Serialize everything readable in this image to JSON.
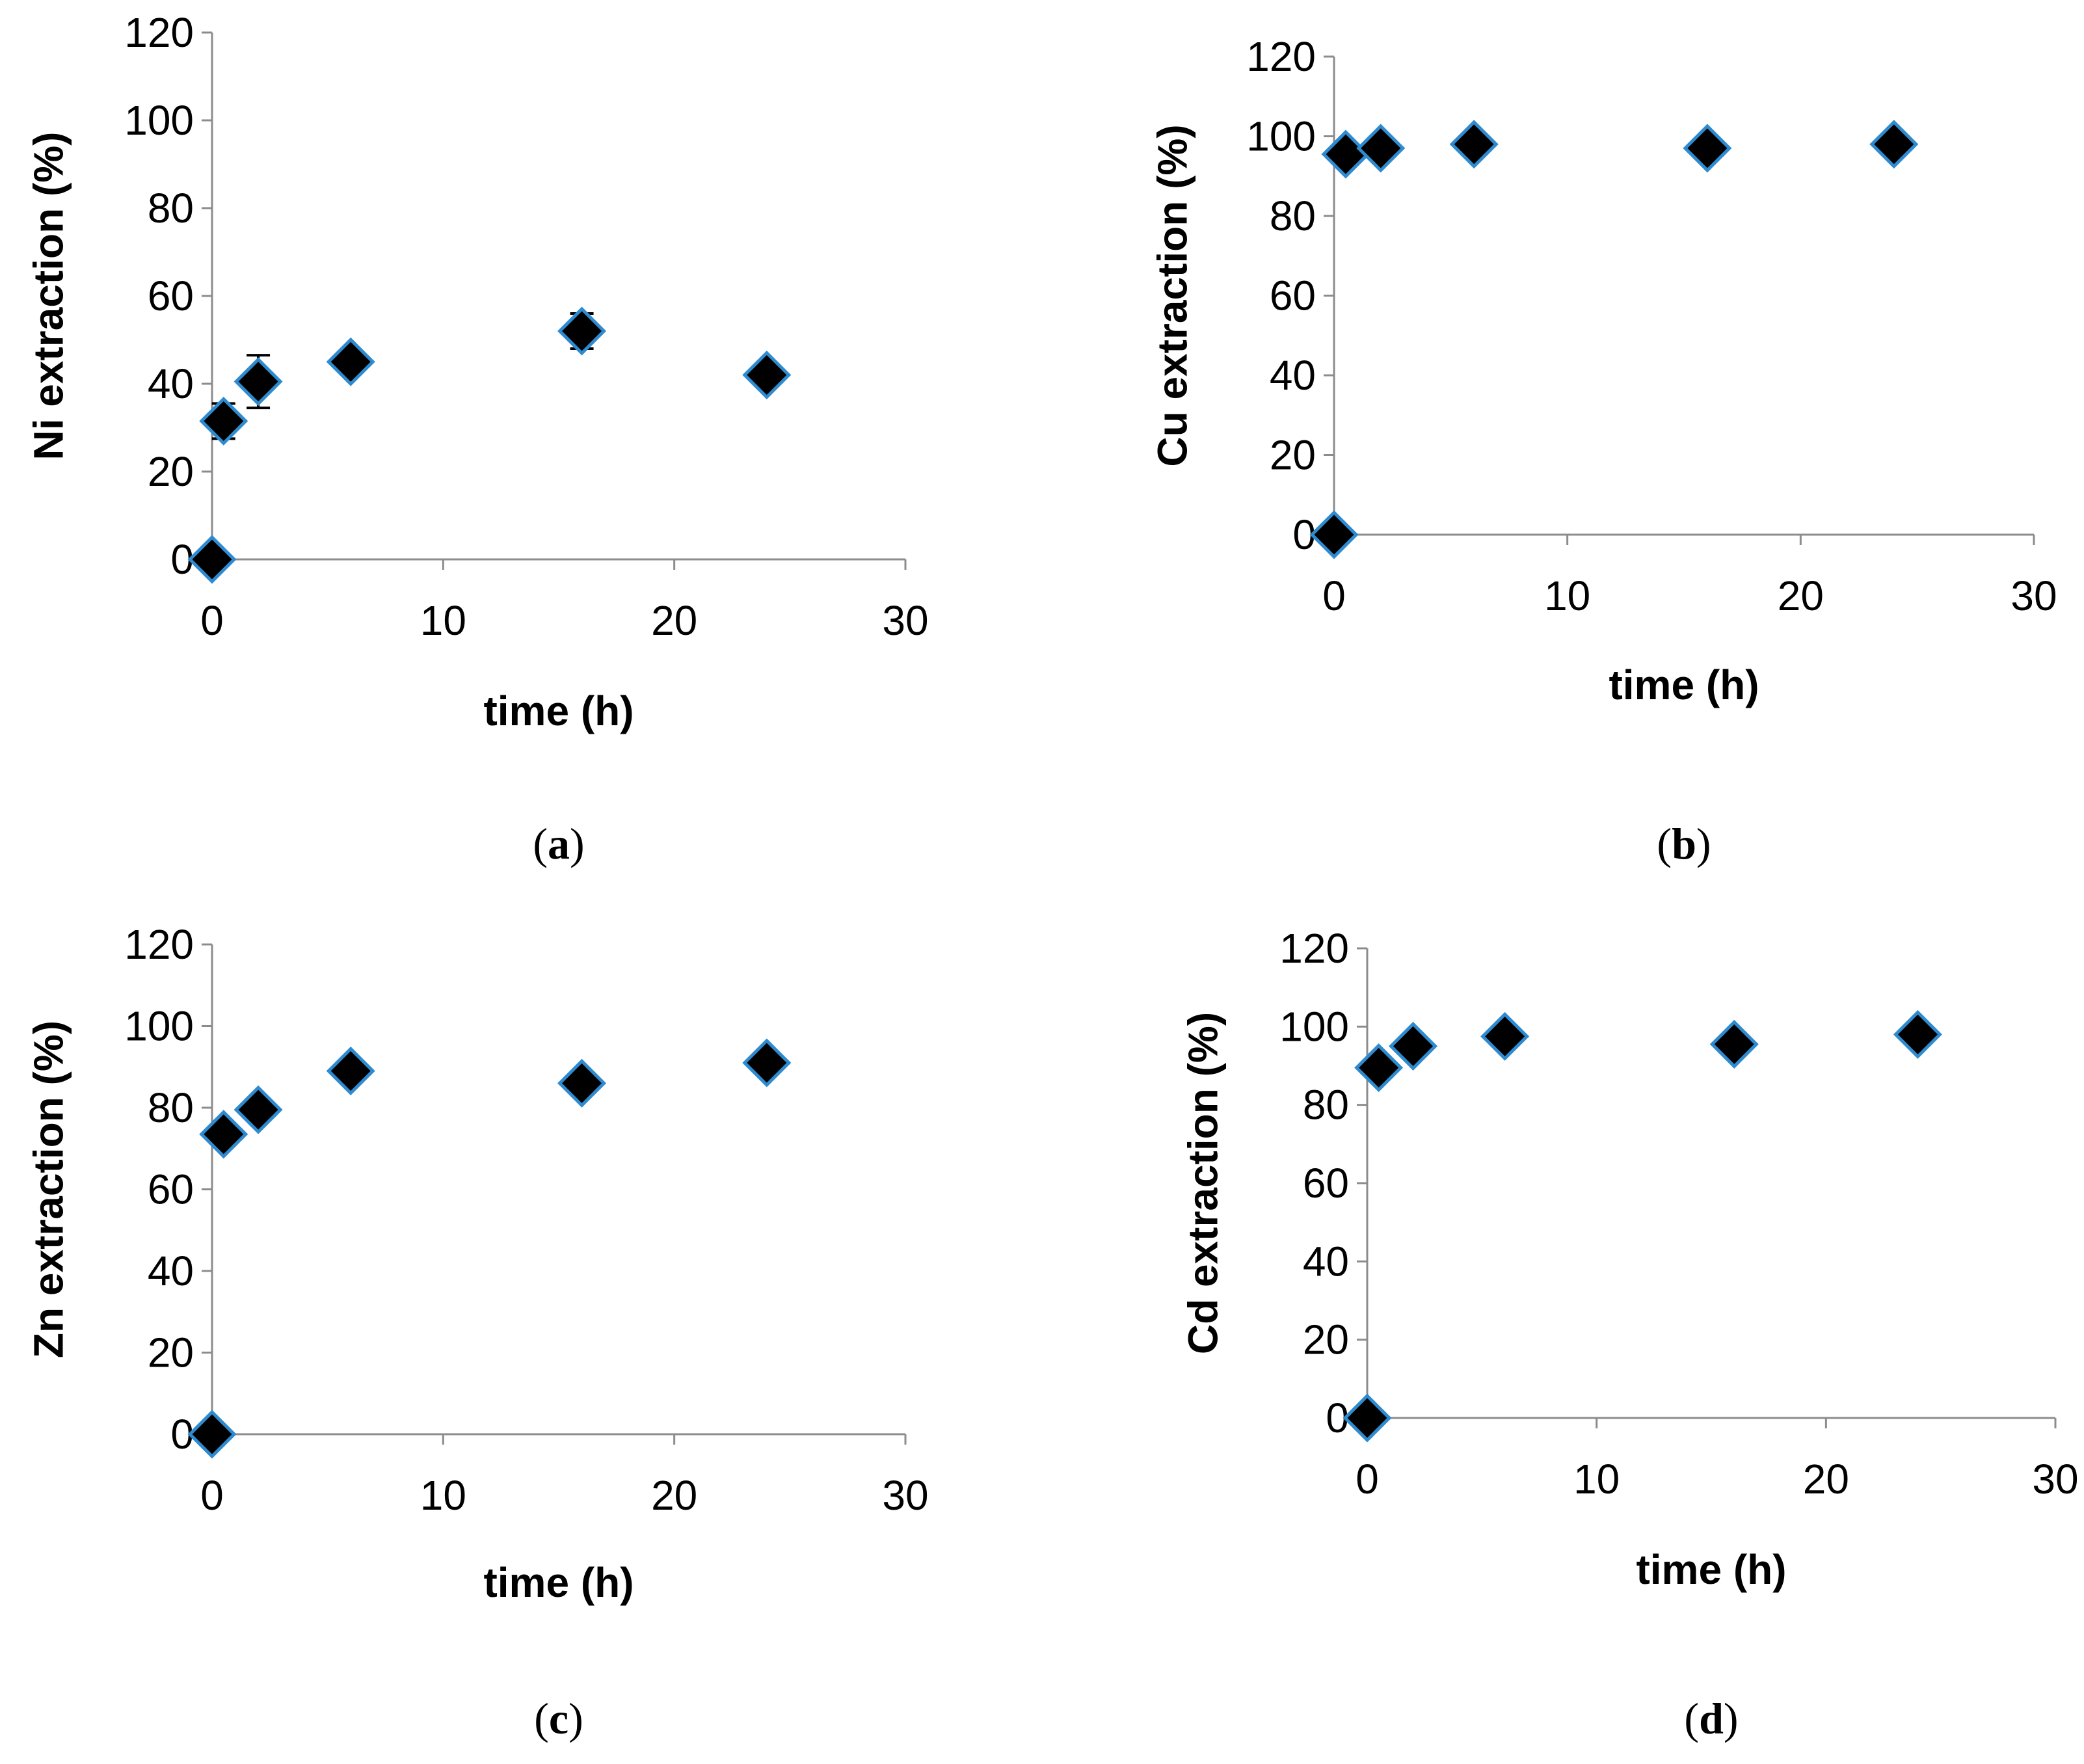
{
  "figure_title": "",
  "chart_data": [
    {
      "type": "scatter",
      "panel": "a",
      "xlabel": "time (h)",
      "ylabel": "Ni extraction (%)",
      "xlim": [
        0,
        30
      ],
      "ylim": [
        0,
        120
      ],
      "xticks": [
        0,
        10,
        20,
        30
      ],
      "yticks": [
        0,
        20,
        40,
        60,
        80,
        100,
        120
      ],
      "marker_fill": "#000000",
      "marker_edge": "#2e8bd0",
      "series": [
        {
          "name": "Ni",
          "points": [
            {
              "x": 0,
              "y": 0
            },
            {
              "x": 0.5,
              "y": 31.5,
              "err": 4
            },
            {
              "x": 2,
              "y": 40.5,
              "err": 6
            },
            {
              "x": 6,
              "y": 45
            },
            {
              "x": 16,
              "y": 52,
              "err": 4
            },
            {
              "x": 24,
              "y": 42
            }
          ]
        }
      ]
    },
    {
      "type": "scatter",
      "panel": "b",
      "xlabel": "time (h)",
      "ylabel": "Cu extraction (%)",
      "xlim": [
        0,
        30
      ],
      "ylim": [
        0,
        120
      ],
      "xticks": [
        0,
        10,
        20,
        30
      ],
      "yticks": [
        0,
        20,
        40,
        60,
        80,
        100,
        120
      ],
      "marker_fill": "#000000",
      "marker_edge": "#2e8bd0",
      "series": [
        {
          "name": "Cu",
          "points": [
            {
              "x": 0,
              "y": 0
            },
            {
              "x": 0.5,
              "y": 95.5
            },
            {
              "x": 2,
              "y": 97
            },
            {
              "x": 6,
              "y": 98
            },
            {
              "x": 16,
              "y": 97
            },
            {
              "x": 24,
              "y": 98
            }
          ]
        }
      ]
    },
    {
      "type": "scatter",
      "panel": "c",
      "xlabel": "time (h)",
      "ylabel": "Zn extraction (%)",
      "xlim": [
        0,
        30
      ],
      "ylim": [
        0,
        120
      ],
      "xticks": [
        0,
        10,
        20,
        30
      ],
      "yticks": [
        0,
        20,
        40,
        60,
        80,
        100,
        120
      ],
      "marker_fill": "#000000",
      "marker_edge": "#2e8bd0",
      "series": [
        {
          "name": "Zn",
          "points": [
            {
              "x": 0,
              "y": 0
            },
            {
              "x": 0.5,
              "y": 73.5
            },
            {
              "x": 2,
              "y": 79.5
            },
            {
              "x": 6,
              "y": 89
            },
            {
              "x": 16,
              "y": 86
            },
            {
              "x": 24,
              "y": 91
            }
          ]
        }
      ]
    },
    {
      "type": "scatter",
      "panel": "d",
      "xlabel": "time (h)",
      "ylabel": "Cd extraction (%)",
      "xlim": [
        0,
        30
      ],
      "ylim": [
        0,
        120
      ],
      "xticks": [
        0,
        10,
        20,
        30
      ],
      "yticks": [
        0,
        20,
        40,
        60,
        80,
        100,
        120
      ],
      "marker_fill": "#000000",
      "marker_edge": "#2e8bd0",
      "series": [
        {
          "name": "Cd",
          "points": [
            {
              "x": 0,
              "y": 0
            },
            {
              "x": 0.5,
              "y": 89.5
            },
            {
              "x": 2,
              "y": 95
            },
            {
              "x": 6,
              "y": 97.5
            },
            {
              "x": 16,
              "y": 95.5,
              "err": 2
            },
            {
              "x": 24,
              "y": 98
            }
          ]
        }
      ]
    }
  ]
}
